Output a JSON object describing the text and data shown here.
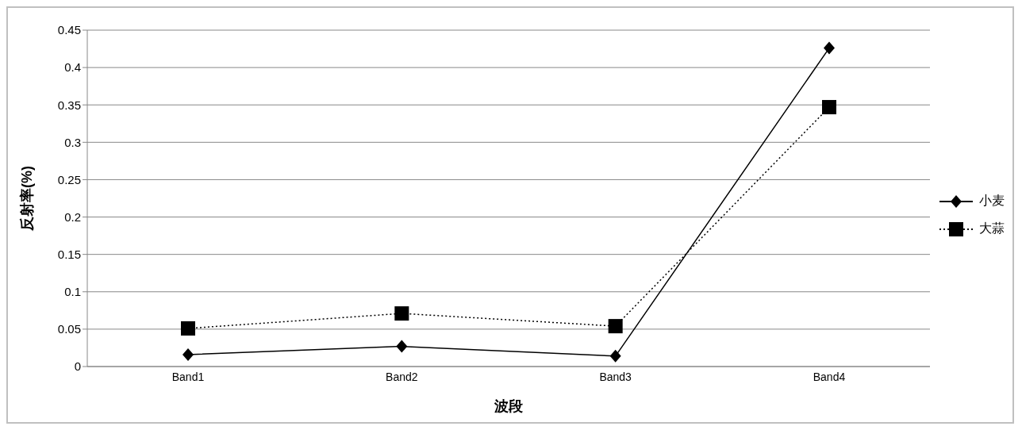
{
  "chart_data": {
    "type": "line",
    "xlabel": "波段",
    "ylabel": "反射率(%)",
    "categories": [
      "Band1",
      "Band2",
      "Band3",
      "Band4"
    ],
    "series": [
      {
        "name": "小麦",
        "color": "#000000",
        "marker": "diamond",
        "line_style": "solid",
        "values": [
          0.016,
          0.027,
          0.014,
          0.426
        ]
      },
      {
        "name": "大蒜",
        "color": "#000000",
        "marker": "square",
        "line_style": "dotted",
        "values": [
          0.051,
          0.071,
          0.054,
          0.347
        ]
      }
    ],
    "ylim": [
      0,
      0.45
    ],
    "yticks": [
      0,
      0.05,
      0.1,
      0.15,
      0.2,
      0.25,
      0.3,
      0.35,
      0.4,
      0.45
    ],
    "grid": "y",
    "legend": "right"
  }
}
